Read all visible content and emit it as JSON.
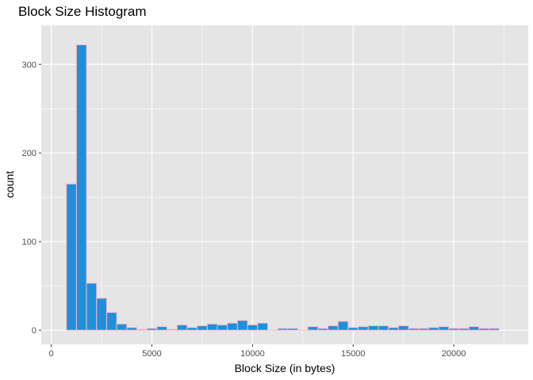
{
  "chart_data": {
    "type": "bar",
    "title": "Block Size Histogram",
    "xlabel": "Block Size (in bytes)",
    "ylabel": "count",
    "xlim": [
      -500,
      23700
    ],
    "ylim": [
      -16,
      344
    ],
    "x_ticks": [
      0,
      5000,
      10000,
      15000,
      20000
    ],
    "x_tick_labels": [
      "0",
      "5000",
      "10000",
      "15000",
      "20000"
    ],
    "y_ticks": [
      0,
      100,
      200,
      300
    ],
    "y_tick_labels": [
      "0",
      "100",
      "200",
      "300"
    ],
    "grid": true,
    "colors": {
      "panel_background": "#e5e5e5",
      "grid_major": "#ffffff",
      "bar_fill": "#1e90db",
      "bar_outline": "#ffb6c1"
    },
    "bins": {
      "start": 750,
      "width": 500,
      "counts": [
        165,
        322,
        53,
        36,
        20,
        7,
        3,
        1,
        2,
        4,
        1,
        6,
        3,
        5,
        7,
        6,
        8,
        11,
        6,
        8,
        0,
        2,
        2,
        0,
        4,
        2,
        5,
        10,
        3,
        4,
        5,
        5,
        3,
        5,
        2,
        2,
        3,
        4,
        2,
        2,
        4,
        2,
        2
      ]
    }
  }
}
